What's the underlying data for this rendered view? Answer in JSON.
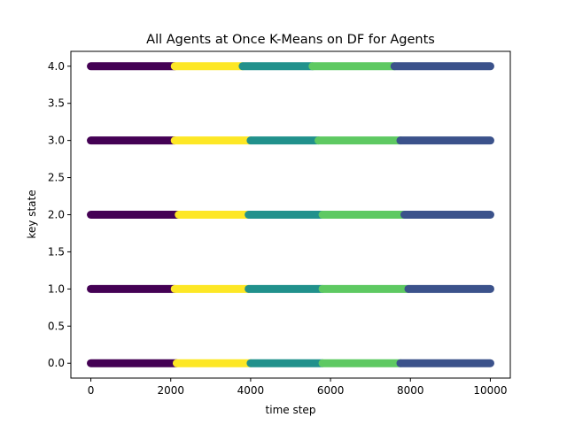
{
  "chart_data": {
    "type": "scatter",
    "title": "All Agents at Once K-Means on DF for Agents",
    "xlabel": "time step",
    "ylabel": "key state",
    "xlim": [
      -500,
      10500
    ],
    "ylim": [
      -0.2,
      4.2
    ],
    "x_ticks": [
      0,
      2000,
      4000,
      6000,
      8000,
      10000
    ],
    "x_tick_labels": [
      "0",
      "2000",
      "4000",
      "6000",
      "8000",
      "10000"
    ],
    "y_ticks": [
      0.0,
      0.5,
      1.0,
      1.5,
      2.0,
      2.5,
      3.0,
      3.5,
      4.0
    ],
    "y_tick_labels": [
      "0.0",
      "0.5",
      "1.0",
      "1.5",
      "2.0",
      "2.5",
      "3.0",
      "3.5",
      "4.0"
    ],
    "grid": false,
    "cluster_colors": {
      "0": "#440154",
      "1": "#fde725",
      "2": "#21918c",
      "3": "#5ec962",
      "4": "#3b528b"
    },
    "rows": [
      {
        "key_state": 0.0,
        "segments": [
          {
            "cluster": 0,
            "x_start": 0,
            "x_end": 2150
          },
          {
            "cluster": 1,
            "x_start": 2150,
            "x_end": 4000
          },
          {
            "cluster": 2,
            "x_start": 4000,
            "x_end": 5800
          },
          {
            "cluster": 3,
            "x_start": 5800,
            "x_end": 7750
          },
          {
            "cluster": 4,
            "x_start": 7750,
            "x_end": 10000
          }
        ]
      },
      {
        "key_state": 1.0,
        "segments": [
          {
            "cluster": 0,
            "x_start": 0,
            "x_end": 2100
          },
          {
            "cluster": 1,
            "x_start": 2100,
            "x_end": 3950
          },
          {
            "cluster": 2,
            "x_start": 3950,
            "x_end": 5800
          },
          {
            "cluster": 3,
            "x_start": 5800,
            "x_end": 7950
          },
          {
            "cluster": 4,
            "x_start": 7950,
            "x_end": 10000
          }
        ]
      },
      {
        "key_state": 2.0,
        "segments": [
          {
            "cluster": 0,
            "x_start": 0,
            "x_end": 2200
          },
          {
            "cluster": 1,
            "x_start": 2200,
            "x_end": 3950
          },
          {
            "cluster": 2,
            "x_start": 3950,
            "x_end": 5800
          },
          {
            "cluster": 3,
            "x_start": 5800,
            "x_end": 7850
          },
          {
            "cluster": 4,
            "x_start": 7850,
            "x_end": 10000
          }
        ]
      },
      {
        "key_state": 3.0,
        "segments": [
          {
            "cluster": 0,
            "x_start": 0,
            "x_end": 2100
          },
          {
            "cluster": 1,
            "x_start": 2100,
            "x_end": 4000
          },
          {
            "cluster": 2,
            "x_start": 4000,
            "x_end": 5700
          },
          {
            "cluster": 3,
            "x_start": 5700,
            "x_end": 7750
          },
          {
            "cluster": 4,
            "x_start": 7750,
            "x_end": 10000
          }
        ]
      },
      {
        "key_state": 4.0,
        "segments": [
          {
            "cluster": 0,
            "x_start": 0,
            "x_end": 2100
          },
          {
            "cluster": 1,
            "x_start": 2100,
            "x_end": 3800
          },
          {
            "cluster": 2,
            "x_start": 3800,
            "x_end": 5550
          },
          {
            "cluster": 3,
            "x_start": 5550,
            "x_end": 7600
          },
          {
            "cluster": 4,
            "x_start": 7600,
            "x_end": 10000
          }
        ]
      }
    ]
  }
}
